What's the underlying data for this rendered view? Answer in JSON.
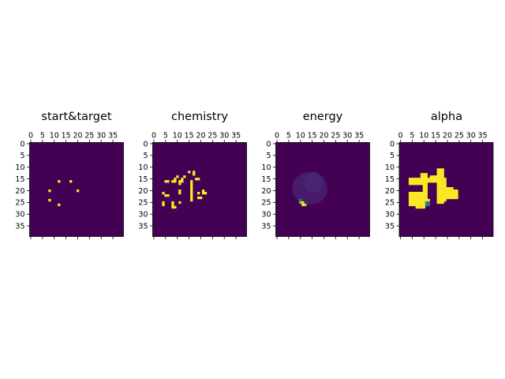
{
  "chart_data": [
    {
      "type": "heatmap",
      "title": "start&target",
      "xticks": [
        0,
        5,
        10,
        15,
        20,
        25,
        30,
        35
      ],
      "yticks": [
        0,
        5,
        10,
        15,
        20,
        25,
        30,
        35
      ],
      "xlim": [
        0,
        40
      ],
      "ylim": [
        0,
        40
      ],
      "colormap": "viridis",
      "vmin": 0,
      "vmax": 1,
      "cells": [
        [
          12,
          16
        ],
        [
          17,
          16
        ],
        [
          8,
          20
        ],
        [
          20,
          20
        ],
        [
          8,
          24
        ],
        [
          12,
          26
        ]
      ]
    },
    {
      "type": "heatmap",
      "title": "chemistry",
      "xticks": [
        0,
        5,
        10,
        15,
        20,
        25,
        30,
        35
      ],
      "yticks": [
        0,
        5,
        10,
        15,
        20,
        25,
        30,
        35
      ],
      "xlim": [
        0,
        40
      ],
      "ylim": [
        0,
        40
      ],
      "colormap": "viridis",
      "vmin": 0,
      "vmax": 1,
      "cells": [
        [
          15,
          12
        ],
        [
          17,
          12
        ],
        [
          17,
          13
        ],
        [
          10,
          14
        ],
        [
          13,
          14
        ],
        [
          9,
          15
        ],
        [
          12,
          15
        ],
        [
          18,
          15
        ],
        [
          19,
          15
        ],
        [
          5,
          16
        ],
        [
          6,
          16
        ],
        [
          8,
          16
        ],
        [
          9,
          16
        ],
        [
          11,
          16
        ],
        [
          12,
          16
        ],
        [
          16,
          16
        ],
        [
          11,
          17
        ],
        [
          16,
          17
        ],
        [
          16,
          18
        ],
        [
          16,
          19
        ],
        [
          11,
          20
        ],
        [
          16,
          20
        ],
        [
          21,
          20
        ],
        [
          4,
          21
        ],
        [
          11,
          21
        ],
        [
          16,
          21
        ],
        [
          19,
          21
        ],
        [
          21,
          21
        ],
        [
          22,
          21
        ],
        [
          5,
          22
        ],
        [
          6,
          22
        ],
        [
          16,
          22
        ],
        [
          16,
          23
        ],
        [
          19,
          23
        ],
        [
          20,
          23
        ],
        [
          16,
          24
        ],
        [
          4,
          25
        ],
        [
          8,
          25
        ],
        [
          11,
          25
        ],
        [
          4,
          26
        ],
        [
          8,
          26
        ],
        [
          8,
          27
        ],
        [
          9,
          27
        ]
      ]
    },
    {
      "type": "heatmap",
      "title": "energy",
      "xticks": [
        0,
        5,
        10,
        15,
        20,
        25,
        30,
        35
      ],
      "yticks": [
        0,
        5,
        10,
        15,
        20,
        25,
        30,
        35
      ],
      "xlim": [
        0,
        40
      ],
      "ylim": [
        0,
        40
      ],
      "colormap": "viridis",
      "vmin": 0,
      "vmax": 1,
      "background": 0.0,
      "blobs": [
        {
          "cx": 14.5,
          "cy": 19.5,
          "rx": 7.5,
          "ry": 7,
          "value": 0.07
        },
        {
          "cx": 16,
          "cy": 17,
          "rx": 4,
          "ry": 4.5,
          "value": 0.1
        }
      ],
      "cells": [
        [
          10,
          24,
          0.45
        ],
        [
          10,
          25,
          0.8
        ],
        [
          11,
          25,
          0.95
        ],
        [
          11,
          26,
          1.0
        ],
        [
          12,
          26,
          0.9
        ]
      ]
    },
    {
      "type": "heatmap",
      "title": "alpha",
      "xticks": [
        0,
        5,
        10,
        15,
        20,
        25,
        30,
        35
      ],
      "yticks": [
        0,
        5,
        10,
        15,
        20,
        25,
        30,
        35
      ],
      "xlim": [
        0,
        40
      ],
      "ylim": [
        0,
        40
      ],
      "colormap": "viridis",
      "vmin": 0,
      "vmax": 1,
      "rects": [
        [
          16,
          11,
          3,
          4
        ],
        [
          9,
          13,
          3,
          5
        ],
        [
          13,
          14,
          3,
          2
        ],
        [
          4,
          15,
          5,
          3
        ],
        [
          18,
          15,
          2,
          2
        ],
        [
          12,
          15,
          4,
          2
        ],
        [
          10,
          17,
          2,
          7
        ],
        [
          16,
          15,
          3,
          11
        ],
        [
          19,
          17,
          1,
          8
        ],
        [
          20,
          19,
          3,
          3
        ],
        [
          23,
          20,
          2,
          3
        ],
        [
          19,
          22,
          6,
          2
        ],
        [
          4,
          21,
          3,
          6
        ],
        [
          7,
          21,
          3,
          7
        ],
        [
          10,
          24,
          3,
          2
        ],
        [
          7,
          26,
          4,
          2
        ]
      ],
      "cells": [
        [
          11,
          25,
          0.5
        ],
        [
          12,
          25,
          0.4
        ],
        [
          11,
          26,
          0.45
        ],
        [
          12,
          26,
          0.35
        ]
      ]
    }
  ]
}
